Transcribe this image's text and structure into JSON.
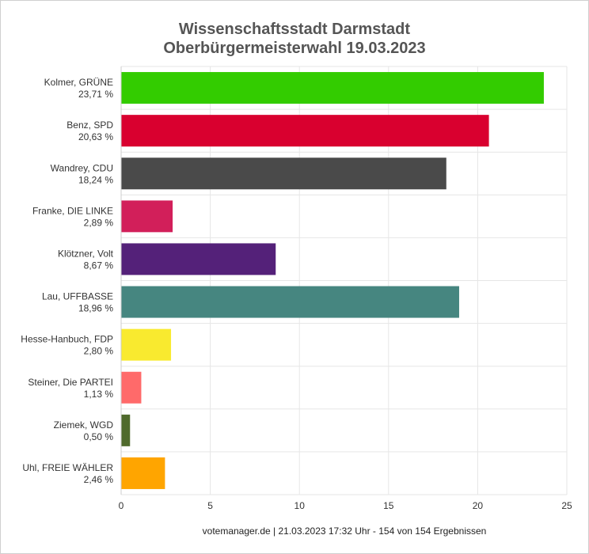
{
  "chart_data": {
    "type": "bar",
    "orientation": "horizontal",
    "title": "Wissenschaftsstadt Darmstadt",
    "subtitle": "Oberbürgermeisterwahl 19.03.2023",
    "categories": [
      {
        "name": "Kolmer, GRÜNE",
        "label": "23,71 %"
      },
      {
        "name": "Benz, SPD",
        "label": "20,63 %"
      },
      {
        "name": "Wandrey, CDU",
        "label": "18,24 %"
      },
      {
        "name": "Franke, DIE LINKE",
        "label": "2,89 %"
      },
      {
        "name": "Klötzner, Volt",
        "label": "8,67 %"
      },
      {
        "name": "Lau, UFFBASSE",
        "label": "18,96 %"
      },
      {
        "name": "Hesse-Hanbuch, FDP",
        "label": "2,80 %"
      },
      {
        "name": "Steiner, Die PARTEI",
        "label": "1,13 %"
      },
      {
        "name": "Ziemek, WGD",
        "label": "0,50 %"
      },
      {
        "name": "Uhl, FREIE WÄHLER",
        "label": "2,46 %"
      }
    ],
    "values": [
      23.71,
      20.63,
      18.24,
      2.89,
      8.67,
      18.96,
      2.8,
      1.13,
      0.5,
      2.46
    ],
    "colors": [
      "#33cc00",
      "#d9002f",
      "#4a4a4a",
      "#d21f5a",
      "#542179",
      "#468680",
      "#f9ea2f",
      "#ff6a6a",
      "#4f6a2c",
      "#ffa500"
    ],
    "xlim": [
      0,
      25
    ],
    "xticks": [
      "0",
      "5",
      "10",
      "15",
      "20",
      "25"
    ],
    "grid": true,
    "footer": "votemanager.de | 21.03.2023 17:32 Uhr - 154 von 154 Ergebnissen"
  }
}
